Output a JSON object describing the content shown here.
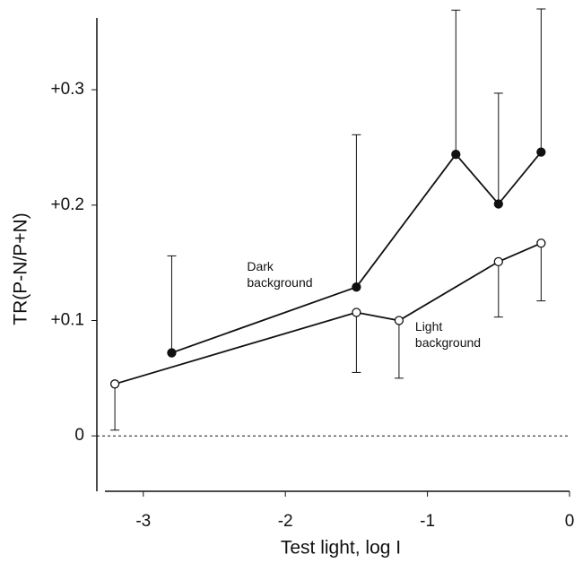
{
  "chart_data": {
    "type": "line",
    "x_label": "Test light, log I",
    "y_label": "TR(P-N/P+N)",
    "xlim": [
      -3.27,
      0
    ],
    "xticks": [
      -3,
      -2,
      -1,
      0
    ],
    "ylim": [
      -0.048,
      0.37
    ],
    "yticks": [
      {
        "value": 0,
        "label": "0"
      },
      {
        "value": 0.1,
        "label": "+0.1"
      },
      {
        "value": 0.2,
        "label": "+0.2"
      },
      {
        "value": 0.3,
        "label": "+0.3"
      }
    ],
    "zero_line": true,
    "series": [
      {
        "label": [
          "Dark",
          "background"
        ],
        "color": "#111111",
        "marker_fill": "#111111",
        "err_direction": "up",
        "x": [
          -2.8,
          -1.5,
          -0.8,
          -0.5,
          -0.2
        ],
        "values": [
          0.072,
          0.129,
          0.244,
          0.201,
          0.246
        ],
        "err": [
          0.084,
          0.132,
          0.125,
          0.096,
          0.124
        ]
      },
      {
        "label": [
          "Light",
          "background"
        ],
        "color": "#111111",
        "marker_fill": "#ffffff",
        "err_direction": "down",
        "x": [
          -3.2,
          -1.5,
          -1.2,
          -0.5,
          -0.2
        ],
        "values": [
          0.045,
          0.107,
          0.1,
          0.151,
          0.167
        ],
        "err": [
          0.04,
          0.052,
          0.05,
          0.048,
          0.05
        ]
      }
    ]
  }
}
